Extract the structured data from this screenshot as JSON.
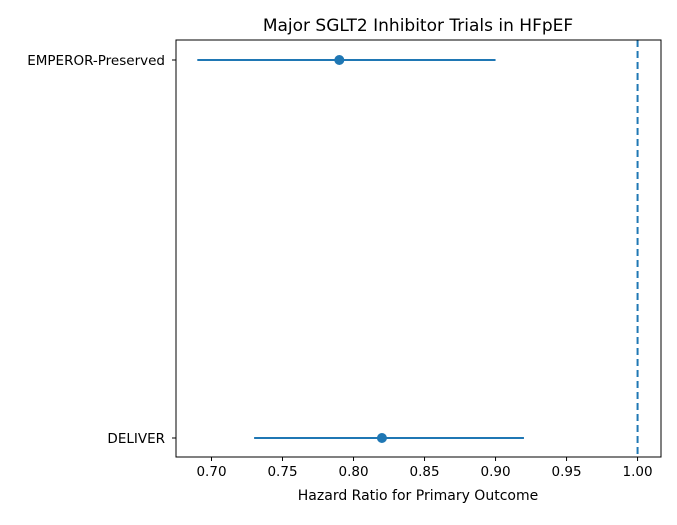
{
  "chart_data": {
    "type": "forest",
    "title": "Major SGLT2 Inhibitor Trials in HFpEF",
    "xlabel": "Hazard Ratio for Primary Outcome",
    "ylabel": "",
    "xlim": [
      0.675,
      1.0165
    ],
    "xticks": [
      0.7,
      0.75,
      0.8,
      0.85,
      0.9,
      0.95,
      1.0
    ],
    "xtick_labels": [
      "0.70",
      "0.75",
      "0.80",
      "0.85",
      "0.90",
      "0.95",
      "1.00"
    ],
    "reference_line": {
      "x": 1.0,
      "style": "dashed"
    },
    "color": "#1f77b4",
    "grid": false,
    "series": [
      {
        "label": "EMPEROR-Preserved",
        "estimate": 0.79,
        "lower": 0.69,
        "upper": 0.9
      },
      {
        "label": "DELIVER",
        "estimate": 0.82,
        "lower": 0.73,
        "upper": 0.92
      }
    ]
  }
}
